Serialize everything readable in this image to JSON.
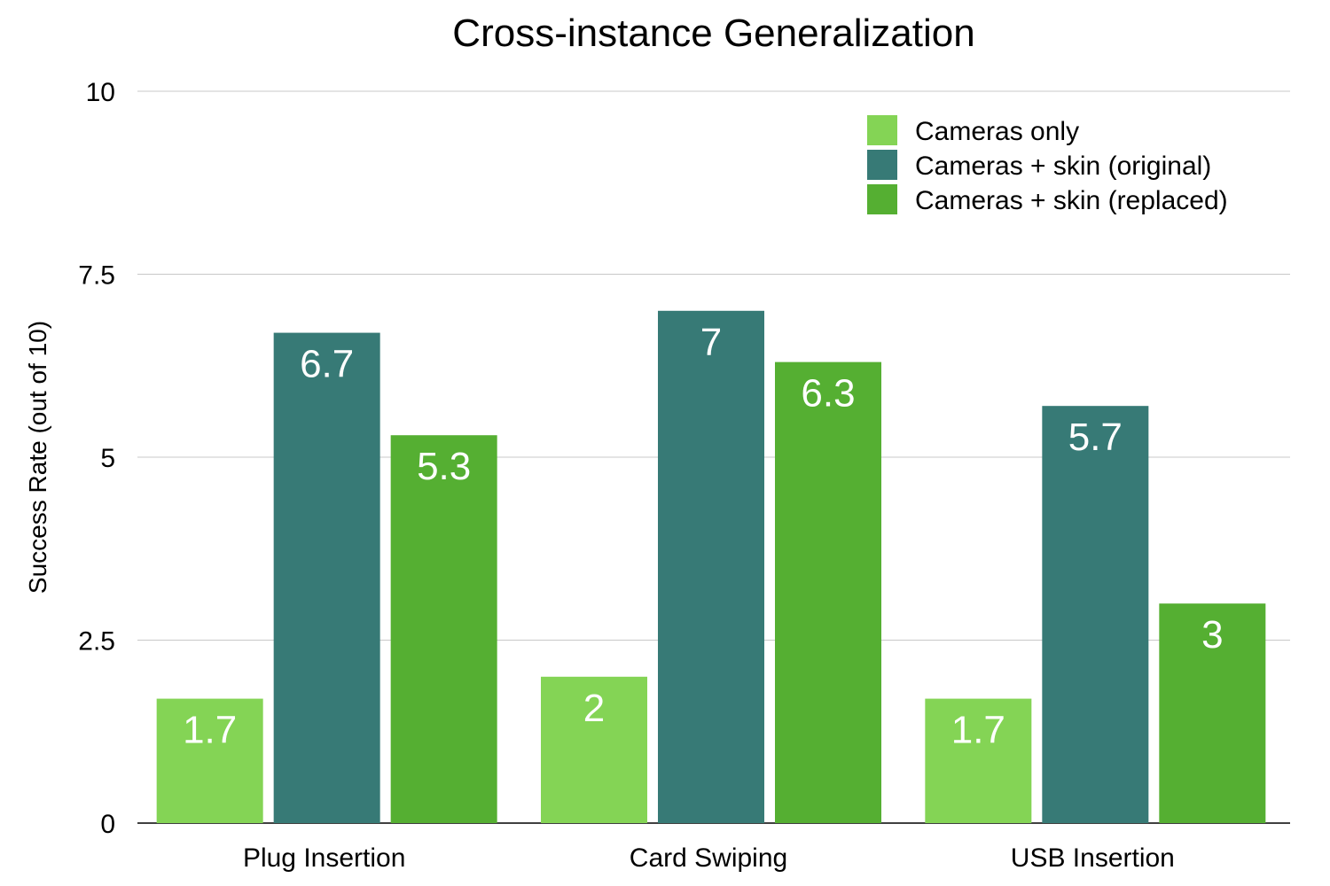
{
  "chart_data": {
    "type": "bar",
    "title": "Cross-instance Generalization",
    "xlabel": "",
    "ylabel": "Success Rate (out of 10)",
    "ylim": [
      0,
      10
    ],
    "yticks": [
      0,
      2.5,
      5,
      7.5,
      10
    ],
    "ytick_labels": [
      "0",
      "2.5",
      "5",
      "7.5",
      "10"
    ],
    "categories": [
      "Plug Insertion",
      "Card Swiping",
      "USB Insertion"
    ],
    "series": [
      {
        "name": "Cameras only",
        "color": "#84d455",
        "values": [
          1.7,
          2,
          1.7
        ]
      },
      {
        "name": "Cameras + skin (original)",
        "color": "#377a76",
        "values": [
          6.7,
          7,
          5.7
        ]
      },
      {
        "name": "Cameras + skin (replaced)",
        "color": "#55af32",
        "values": [
          5.3,
          6.3,
          3
        ]
      }
    ],
    "grid": true,
    "legend_position": "top-right"
  }
}
